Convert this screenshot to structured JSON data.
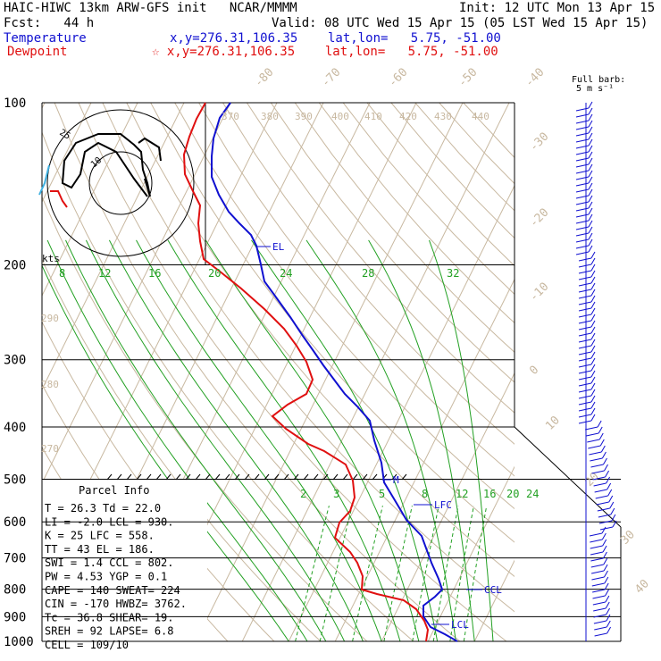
{
  "header": {
    "title_left": "HAIC-HIWC 13km ARW-GFS init   NCAR/MMMM",
    "init": "Init: 12 UTC Mon 13 Apr 15",
    "fcst": "Fcst:   44 h",
    "valid": "Valid: 08 UTC Wed 15 Apr 15 (05 LST Wed 15 Apr 15)",
    "temp_label": "Temperature",
    "temp_loc": "x,y=276.31,106.35    lat,lon=   5.75, -51.00",
    "dew_label": "Dewpoint",
    "dew_loc": "x,y=276.31,106.35    lat,lon=   5.75, -51.00",
    "full_barb_1": "Full barb:",
    "full_barb_2": "5 m s⁻¹"
  },
  "chart_data": {
    "type": "line",
    "subtype": "skew-T log-p",
    "pressure_levels": [
      "100",
      "200",
      "300",
      "400",
      "500",
      "600",
      "700",
      "800",
      "900",
      "1000"
    ],
    "temperature_axis_labels": [
      "-80",
      "-70",
      "-60",
      "-50",
      "-40",
      "-30",
      "-20",
      "-10",
      "0",
      "10",
      "20",
      "30",
      "40"
    ],
    "theta_labels": [
      "370",
      "380",
      "390",
      "400",
      "410",
      "420",
      "430",
      "440",
      "290",
      "280",
      "270"
    ],
    "mixing_ratio_labels_upper": [
      "8",
      "12",
      "16",
      "20",
      "24",
      "28",
      "32"
    ],
    "mixing_ratio_labels_lower": [
      "2",
      "3",
      "5",
      "8",
      "12",
      "16",
      "20",
      "24"
    ],
    "series": [
      {
        "name": "Temperature",
        "color": "#1010d0",
        "points": [
          [
            1000,
            26.3
          ],
          [
            950,
            24
          ],
          [
            925,
            22.7
          ],
          [
            900,
            21.5
          ],
          [
            850,
            19.0
          ],
          [
            800,
            16.5
          ],
          [
            750,
            13.6
          ],
          [
            700,
            10.5
          ],
          [
            650,
            7.0
          ],
          [
            600,
            3.5
          ],
          [
            550,
            -0.3
          ],
          [
            500,
            -4.7
          ],
          [
            450,
            -9.8
          ],
          [
            400,
            -15.6
          ],
          [
            350,
            -23.0
          ],
          [
            300,
            -32.0
          ],
          [
            250,
            -42.0
          ],
          [
            200,
            -53.5
          ],
          [
            185,
            -57
          ],
          [
            150,
            -66
          ],
          [
            120,
            -74
          ],
          [
            100,
            -80
          ]
        ]
      },
      {
        "name": "Dewpoint",
        "color": "#e01010",
        "points": [
          [
            1000,
            22.0
          ],
          [
            950,
            20.2
          ],
          [
            925,
            19.5
          ],
          [
            900,
            18.5
          ],
          [
            850,
            14.5
          ],
          [
            800,
            2.0
          ],
          [
            750,
            2.0
          ],
          [
            700,
            -0.5
          ],
          [
            650,
            -6.5
          ],
          [
            600,
            -6.0
          ],
          [
            550,
            -3.5
          ],
          [
            500,
            -5.5
          ],
          [
            450,
            -16.0
          ],
          [
            400,
            -32.0
          ],
          [
            350,
            -36.0
          ],
          [
            300,
            -46.0
          ],
          [
            250,
            -59.0
          ],
          [
            200,
            -75.0
          ],
          [
            180,
            -79
          ],
          [
            150,
            -82
          ],
          [
            120,
            -86
          ],
          [
            100,
            -90
          ]
        ]
      }
    ],
    "level_markers": [
      {
        "label": "EL",
        "p": 186
      },
      {
        "label": "LFC",
        "p": 558
      },
      {
        "label": "M",
        "p": 500
      },
      {
        "label": "CCL",
        "p": 802
      },
      {
        "label": "LCL",
        "p": 930
      }
    ],
    "hodograph": {
      "ring_labels": [
        "10",
        "25"
      ],
      "unit": "kts"
    }
  },
  "parcel": {
    "title": "Parcel  Info",
    "rows": [
      "T  =    26.3  Td  =  22.0",
      "LI =    -2.0  LCL =  930.",
      "K  =      25  LFC =  558.",
      "TT =      43  EL  =  186.",
      "SWI =    1.4  CCL =  802.",
      "PW =    4.53  YGP =   0.1",
      "CAPE =   140  SWEAT=  224",
      "CIN =   -170  HWBZ= 3762.",
      "Tc =    36.8  SHEAR=  19.",
      "SREH =    92  LAPSE=  6.8",
      "CELL = 109/10"
    ]
  }
}
